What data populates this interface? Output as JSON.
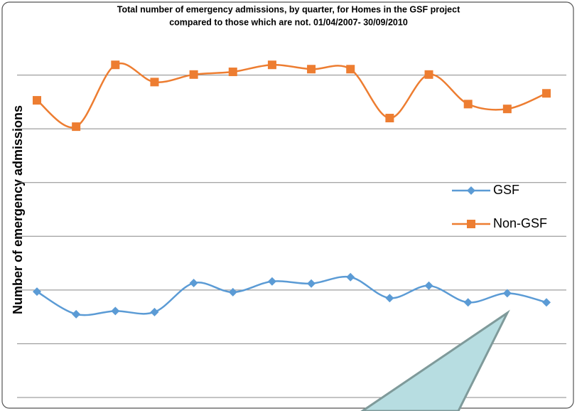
{
  "chart_data": {
    "type": "line",
    "title": "Total number of emergency admissions, by quarter, for Homes in the GSF project",
    "subtitle": "compared to those which are not.  01/04/2007- 30/09/2010",
    "y_label": "Number of emergency admissions",
    "categories": [
      null,
      null,
      null,
      null,
      null,
      null,
      null,
      null,
      null,
      null,
      null,
      null,
      null,
      null
    ],
    "series": [
      {
        "name": "GSF",
        "color": "#5b9bd5",
        "marker": "diamond",
        "values": [
          1.97,
          1.55,
          1.61,
          1.59,
          2.13,
          1.96,
          2.16,
          2.12,
          2.24,
          1.85,
          2.08,
          1.77,
          1.94,
          1.77
        ]
      },
      {
        "name": "Non-GSF",
        "color": "#ed7d31",
        "marker": "square",
        "values": [
          5.53,
          5.04,
          6.19,
          5.87,
          6.01,
          6.06,
          6.19,
          6.11,
          6.11,
          5.2,
          6.01,
          5.46,
          5.37,
          5.66
        ]
      }
    ],
    "ylim": [
      0,
      7
    ],
    "yticks": [
      0,
      1,
      2,
      3,
      4,
      5,
      6
    ],
    "grid": true,
    "legend": "right"
  }
}
